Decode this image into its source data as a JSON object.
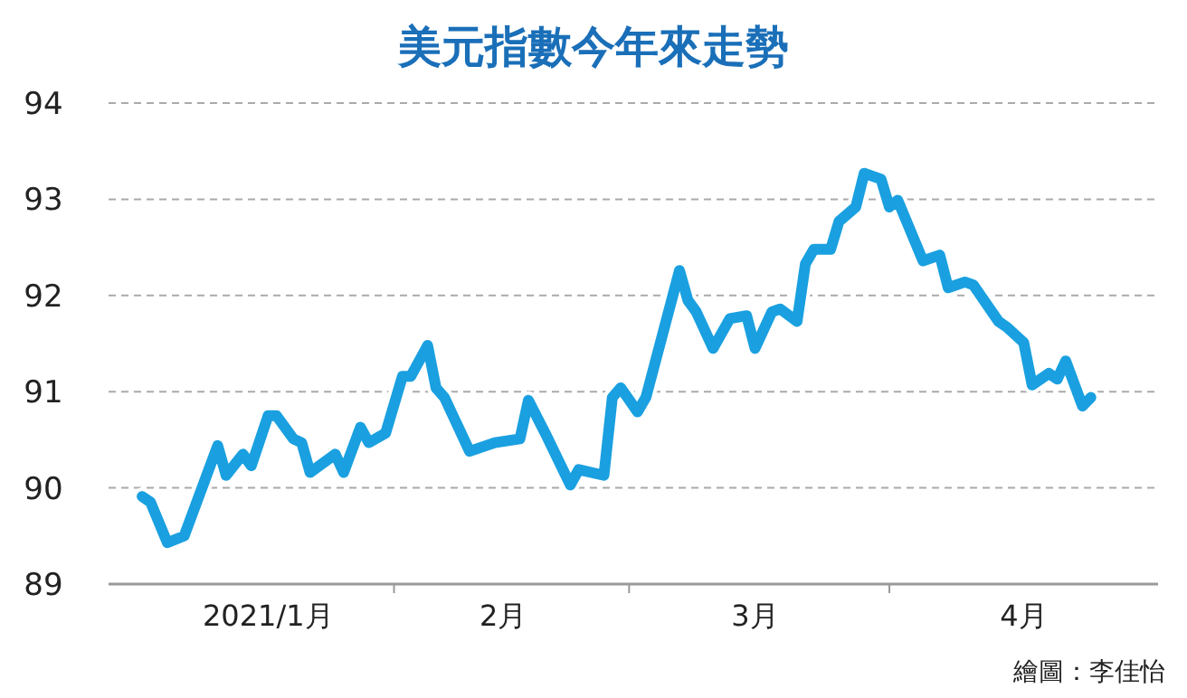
{
  "chart_data": {
    "type": "line",
    "title": "美元指數今年來走勢",
    "annotations": [
      "繪圖：李佳怡"
    ],
    "x": [
      "2021-01-02",
      "2021-01-03",
      "2021-01-05",
      "2021-01-07",
      "2021-01-11",
      "2021-01-12",
      "2021-01-14",
      "2021-01-15",
      "2021-01-17",
      "2021-01-18",
      "2021-01-20",
      "2021-01-21",
      "2021-01-22",
      "2021-01-25",
      "2021-01-26",
      "2021-01-28",
      "2021-01-29",
      "2021-01-31",
      "2021-02-02",
      "2021-02-03",
      "2021-02-05",
      "2021-02-06",
      "2021-02-07",
      "2021-02-10",
      "2021-02-13",
      "2021-02-16",
      "2021-02-17",
      "2021-02-19",
      "2021-02-22",
      "2021-02-23",
      "2021-02-26",
      "2021-02-27",
      "2021-02-28",
      "2021-03-02",
      "2021-03-03",
      "2021-03-07",
      "2021-03-08",
      "2021-03-09",
      "2021-03-11",
      "2021-03-13",
      "2021-03-15",
      "2021-03-16",
      "2021-03-18",
      "2021-03-19",
      "2021-03-21",
      "2021-03-22",
      "2021-03-23",
      "2021-03-25",
      "2021-03-26",
      "2021-03-28",
      "2021-03-29",
      "2021-03-31",
      "2021-04-01",
      "2021-04-02",
      "2021-04-05",
      "2021-04-07",
      "2021-04-08",
      "2021-04-10",
      "2021-04-11",
      "2021-04-14",
      "2021-04-15",
      "2021-04-17",
      "2021-04-18",
      "2021-04-20",
      "2021-04-21",
      "2021-04-22",
      "2021-04-24",
      "2021-04-25"
    ],
    "series": [
      {
        "color": "#1aa0e0",
        "values": [
          89.91,
          89.85,
          89.43,
          89.5,
          90.44,
          90.13,
          90.35,
          90.23,
          90.75,
          90.75,
          90.51,
          90.47,
          90.16,
          90.35,
          90.16,
          90.63,
          90.47,
          90.57,
          91.16,
          91.16,
          91.48,
          91.04,
          90.94,
          90.38,
          90.47,
          90.51,
          90.91,
          90.57,
          90.03,
          90.19,
          90.13,
          90.94,
          91.04,
          90.79,
          90.94,
          92.26,
          91.95,
          91.83,
          91.45,
          91.76,
          91.79,
          91.45,
          91.83,
          91.86,
          91.73,
          92.33,
          92.48,
          92.48,
          92.77,
          92.92,
          93.27,
          93.21,
          92.92,
          92.99,
          92.36,
          92.42,
          92.08,
          92.14,
          92.11,
          91.73,
          91.67,
          91.51,
          91.07,
          91.19,
          91.13,
          91.32,
          90.85,
          90.94
        ]
      }
    ],
    "xlim": [
      "2020-12-29",
      "2021-05-03"
    ],
    "xticks": [
      {
        "value": "2021-01-17",
        "label": "2021/1月"
      },
      {
        "value": "2021-02-01",
        "label": null
      },
      {
        "value": "2021-02-14",
        "label": "2月"
      },
      {
        "value": "2021-03-01",
        "label": null
      },
      {
        "value": "2021-03-16",
        "label": "3月"
      },
      {
        "value": "2021-04-01",
        "label": null
      },
      {
        "value": "2021-04-17",
        "label": "4月"
      }
    ],
    "ylim": [
      89,
      94
    ],
    "yticks": [
      89,
      90,
      91,
      92,
      93,
      94
    ],
    "grid": "y",
    "marker": "none",
    "line_style": "solid"
  }
}
